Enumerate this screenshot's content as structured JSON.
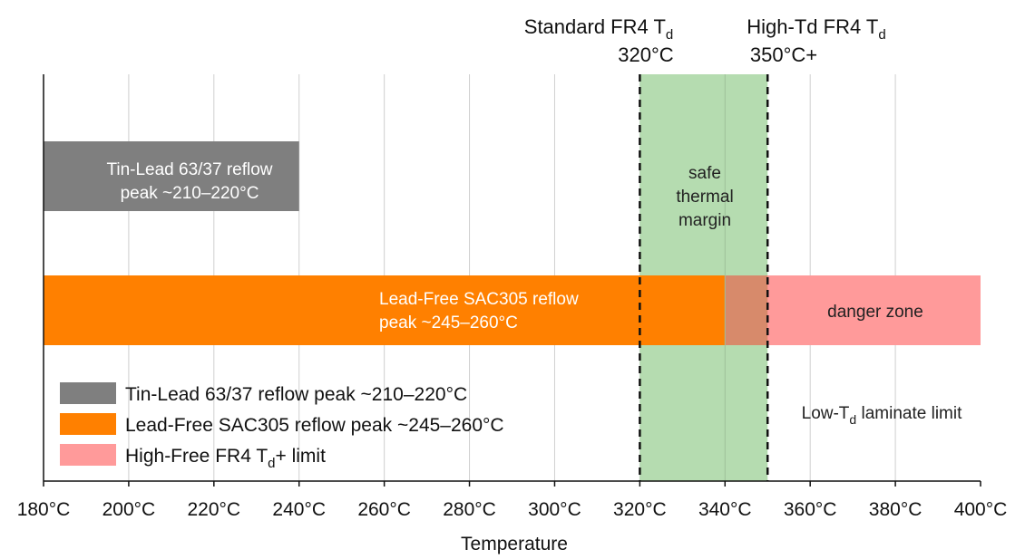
{
  "chart_data": {
    "type": "bar",
    "orientation": "horizontal-range",
    "xlabel": "Temperature",
    "xlim": [
      180,
      400
    ],
    "x_ticks": [
      "180°C",
      "200°C",
      "220°C",
      "240°C",
      "260°C",
      "280°C",
      "300°C",
      "320°C",
      "340°C",
      "360°C",
      "380°C",
      "400°C"
    ],
    "grid": true,
    "bars": [
      {
        "start": 180,
        "end": 240,
        "row": 1,
        "color": "#7f7f7f",
        "label_line1": "Tin-Lead 63/37 reflow",
        "label_line2": "peak ~210–220°C"
      },
      {
        "start": 180,
        "end": 340,
        "row": 2,
        "color": "#ff8000",
        "label_line1": "Lead-Free SAC305 reflow",
        "label_line2": "peak ~245–260°C"
      }
    ],
    "bands": [
      {
        "start": 320,
        "end": 350,
        "color": "#b5dcb0",
        "label_lines": [
          "safe",
          "thermal",
          "margin"
        ]
      },
      {
        "start": 340,
        "end": 400,
        "row": 2,
        "color": "#ff9a9a",
        "label": "danger zone"
      }
    ],
    "reference_lines": [
      {
        "x": 320,
        "style": "dashed",
        "label_main": "Standard FR4 T",
        "label_sub": "d",
        "value_label": "320°C"
      },
      {
        "x": 350,
        "style": "dashed",
        "label_main": "High-Td FR4 T",
        "label_sub": "d",
        "value_label": "350°C+"
      }
    ],
    "annotations": [
      {
        "text_main": "Low-T",
        "text_sub": "d",
        "text_rest": " laminate limit"
      }
    ],
    "legend": {
      "placement": "bottom-left",
      "entries": [
        {
          "color": "#7f7f7f",
          "text": "Tin-Lead 63/37 reflow peak ~210–220°C"
        },
        {
          "color": "#ff8000",
          "text": "Lead-Free SAC305 reflow peak ~245–260°C"
        },
        {
          "color": "#ff9a9a",
          "text_main": "High-Free FR4 T",
          "text_sub": "d",
          "text_rest": "+ limit"
        }
      ]
    }
  }
}
